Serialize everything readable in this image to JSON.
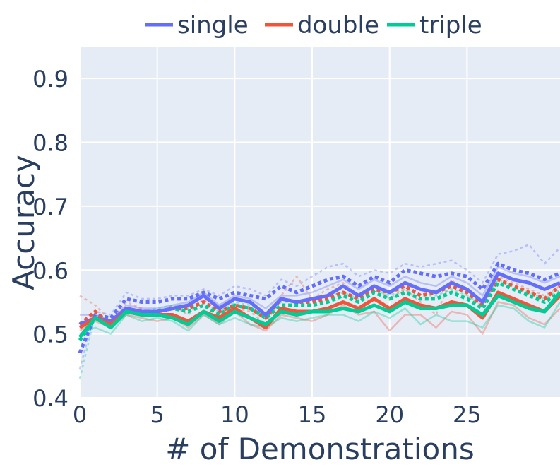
{
  "chart_data": {
    "type": "line",
    "xlabel": "# of Demonstrations",
    "ylabel": "Accuracy",
    "xlim": [
      0,
      31
    ],
    "ylim": [
      0.4,
      0.95
    ],
    "x_ticks": [
      0,
      5,
      10,
      15,
      20,
      25
    ],
    "x_tick_labels": [
      "0",
      "5",
      "10",
      "15",
      "20",
      "25"
    ],
    "y_ticks": [
      0.4,
      0.5,
      0.6,
      0.7,
      0.8,
      0.9
    ],
    "y_tick_labels": [
      "0.4",
      "0.5",
      "0.6",
      "0.7",
      "0.8",
      "0.9"
    ],
    "grid": true,
    "legend_position": "top",
    "background_color": "#e5ecf6",
    "x": [
      0,
      1,
      2,
      3,
      4,
      5,
      6,
      7,
      8,
      9,
      10,
      11,
      12,
      13,
      14,
      15,
      16,
      17,
      18,
      19,
      20,
      21,
      22,
      23,
      24,
      25,
      26,
      27,
      28,
      29,
      30,
      31
    ],
    "series": [
      {
        "name": "single",
        "color": "#636efa",
        "style": "solid",
        "in_legend": true,
        "values": [
          0.515,
          0.525,
          0.52,
          0.54,
          0.535,
          0.535,
          0.54,
          0.545,
          0.56,
          0.54,
          0.555,
          0.55,
          0.53,
          0.555,
          0.55,
          0.555,
          0.56,
          0.575,
          0.56,
          0.575,
          0.565,
          0.58,
          0.57,
          0.565,
          0.58,
          0.57,
          0.55,
          0.595,
          0.585,
          0.58,
          0.57,
          0.58
        ]
      },
      {
        "name": "double",
        "color": "#ef553b",
        "style": "solid",
        "in_legend": true,
        "values": [
          0.51,
          0.525,
          0.515,
          0.535,
          0.53,
          0.53,
          0.53,
          0.52,
          0.535,
          0.525,
          0.54,
          0.525,
          0.51,
          0.54,
          0.535,
          0.535,
          0.54,
          0.55,
          0.54,
          0.555,
          0.54,
          0.555,
          0.545,
          0.54,
          0.55,
          0.545,
          0.525,
          0.565,
          0.555,
          0.545,
          0.535,
          0.56
        ]
      },
      {
        "name": "triple",
        "color": "#00cc96",
        "style": "solid",
        "in_legend": true,
        "values": [
          0.495,
          0.525,
          0.51,
          0.535,
          0.53,
          0.53,
          0.525,
          0.515,
          0.535,
          0.52,
          0.535,
          0.525,
          0.515,
          0.535,
          0.53,
          0.535,
          0.535,
          0.54,
          0.535,
          0.545,
          0.535,
          0.55,
          0.54,
          0.54,
          0.545,
          0.545,
          0.53,
          0.56,
          0.55,
          0.54,
          0.535,
          0.565
        ]
      },
      {
        "color": "#636efa",
        "style": "dotted",
        "in_legend": false,
        "values": [
          0.47,
          0.53,
          0.525,
          0.555,
          0.55,
          0.55,
          0.555,
          0.555,
          0.565,
          0.555,
          0.565,
          0.56,
          0.555,
          0.575,
          0.565,
          0.575,
          0.585,
          0.59,
          0.575,
          0.59,
          0.58,
          0.6,
          0.595,
          0.59,
          0.595,
          0.59,
          0.57,
          0.61,
          0.6,
          0.595,
          0.585,
          0.595
        ]
      },
      {
        "color": "#ef553b",
        "style": "dotted",
        "in_legend": false,
        "values": [
          0.515,
          0.535,
          0.515,
          0.54,
          0.535,
          0.535,
          0.54,
          0.54,
          0.55,
          0.535,
          0.545,
          0.54,
          0.525,
          0.555,
          0.55,
          0.55,
          0.555,
          0.565,
          0.555,
          0.57,
          0.565,
          0.575,
          0.56,
          0.565,
          0.575,
          0.565,
          0.545,
          0.585,
          0.575,
          0.565,
          0.555,
          0.575
        ]
      },
      {
        "color": "#00cc96",
        "style": "dotted",
        "in_legend": false,
        "values": [
          0.49,
          0.525,
          0.515,
          0.535,
          0.53,
          0.535,
          0.54,
          0.535,
          0.545,
          0.53,
          0.545,
          0.54,
          0.525,
          0.545,
          0.545,
          0.545,
          0.55,
          0.56,
          0.55,
          0.565,
          0.555,
          0.565,
          0.555,
          0.555,
          0.565,
          0.555,
          0.54,
          0.58,
          0.57,
          0.56,
          0.55,
          0.565
        ]
      },
      {
        "color": "#636efa",
        "style": "faint-dotted",
        "in_legend": false,
        "values": [
          0.445,
          0.535,
          0.53,
          0.565,
          0.555,
          0.555,
          0.56,
          0.56,
          0.57,
          0.56,
          0.575,
          0.57,
          0.56,
          0.585,
          0.575,
          0.59,
          0.605,
          0.61,
          0.59,
          0.6,
          0.595,
          0.61,
          0.605,
          0.61,
          0.615,
          0.6,
          0.58,
          0.625,
          0.63,
          0.64,
          0.61,
          0.635
        ]
      },
      {
        "color": "#ef553b",
        "style": "faint-dotted",
        "in_legend": false,
        "values": [
          0.56,
          0.545,
          0.52,
          0.55,
          0.54,
          0.53,
          0.545,
          0.53,
          0.555,
          0.53,
          0.54,
          0.535,
          0.515,
          0.56,
          0.59,
          0.555,
          0.57,
          0.58,
          0.56,
          0.575,
          0.555,
          0.57,
          0.55,
          0.53,
          0.585,
          0.56,
          0.545,
          0.59,
          0.58,
          0.57,
          0.56,
          0.575
        ]
      },
      {
        "color": "#00cc96",
        "style": "faint-dotted",
        "in_legend": false,
        "values": [
          0.43,
          0.53,
          0.52,
          0.54,
          0.535,
          0.54,
          0.545,
          0.54,
          0.55,
          0.535,
          0.55,
          0.545,
          0.53,
          0.55,
          0.55,
          0.555,
          0.56,
          0.565,
          0.555,
          0.57,
          0.56,
          0.57,
          0.56,
          0.56,
          0.57,
          0.56,
          0.545,
          0.585,
          0.575,
          0.565,
          0.555,
          0.57
        ]
      },
      {
        "color": "#636efa",
        "style": "faint-solid",
        "in_legend": false,
        "values": [
          0.53,
          0.53,
          0.52,
          0.545,
          0.54,
          0.54,
          0.545,
          0.55,
          0.565,
          0.545,
          0.56,
          0.555,
          0.54,
          0.56,
          0.56,
          0.565,
          0.575,
          0.585,
          0.57,
          0.585,
          0.575,
          0.59,
          0.58,
          0.575,
          0.59,
          0.58,
          0.56,
          0.605,
          0.595,
          0.59,
          0.58,
          0.59
        ]
      },
      {
        "color": "#ef553b",
        "style": "faint-solid",
        "in_legend": false,
        "values": [
          0.505,
          0.52,
          0.51,
          0.53,
          0.525,
          0.52,
          0.525,
          0.51,
          0.53,
          0.515,
          0.535,
          0.515,
          0.505,
          0.53,
          0.525,
          0.52,
          0.53,
          0.545,
          0.53,
          0.535,
          0.505,
          0.53,
          0.53,
          0.51,
          0.535,
          0.53,
          0.5,
          0.55,
          0.545,
          0.525,
          0.515,
          0.54
        ]
      },
      {
        "color": "#00cc96",
        "style": "faint-solid",
        "in_legend": false,
        "values": [
          0.5,
          0.51,
          0.5,
          0.53,
          0.52,
          0.525,
          0.52,
          0.505,
          0.53,
          0.515,
          0.525,
          0.515,
          0.51,
          0.525,
          0.52,
          0.525,
          0.53,
          0.53,
          0.52,
          0.535,
          0.525,
          0.54,
          0.515,
          0.53,
          0.52,
          0.52,
          0.51,
          0.545,
          0.54,
          0.52,
          0.51,
          0.55
        ]
      }
    ]
  }
}
